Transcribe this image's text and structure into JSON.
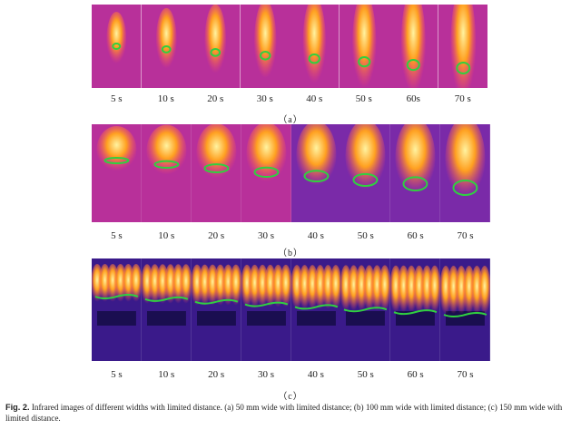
{
  "panels": [
    {
      "id": "a",
      "label": "（a）",
      "times": [
        "5 s",
        "10 s",
        "20 s",
        "30 s",
        "40 s",
        "50 s",
        "60s",
        "70 s"
      ]
    },
    {
      "id": "b",
      "label": "（b）",
      "times": [
        "5 s",
        "10 s",
        "20 s",
        "30 s",
        "40 s",
        "50 s",
        "60 s",
        "70 s"
      ]
    },
    {
      "id": "c",
      "label": "（c）",
      "times": [
        "5 s",
        "10 s",
        "20 s",
        "30 s",
        "40 s",
        "50 s",
        "60 s",
        "70 s"
      ]
    }
  ],
  "caption": {
    "fig_label": "Fig. 2.",
    "text": "Infrared images of different widths with limited distance. (a) 50 mm wide with limited distance; (b) 100 mm wide with limited distance; (c) 150 mm wide with limited distance."
  },
  "colors": {
    "background_a": "#b8309a",
    "background_b": "#7a2aa8",
    "background_c": "#3a1a8a",
    "flame_core": "#fff3a0",
    "flame_mid": "#ffa020",
    "flame_edge": "#ff4a60",
    "contour": "#30d040"
  }
}
